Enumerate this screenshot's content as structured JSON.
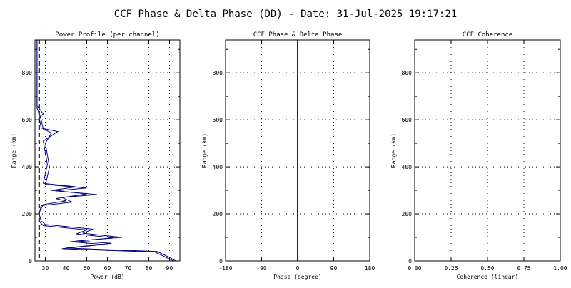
{
  "page": {
    "title": "CCF Phase & Delta Phase (DD) - Date: 31-Jul-2025 19:17:21"
  },
  "chart_data": [
    {
      "type": "line",
      "title": "Power Profile (per channel)",
      "xlabel": "Power (dB)",
      "ylabel": "Range (km)",
      "xlim": [
        25,
        95
      ],
      "ylim": [
        0,
        940
      ],
      "xticks": [
        "30",
        "40",
        "50",
        "60",
        "70",
        "80",
        "90"
      ],
      "xtick_values": [
        30,
        40,
        50,
        60,
        70,
        80,
        90
      ],
      "yticks": [
        "0",
        "200",
        "400",
        "600",
        "800"
      ],
      "ytick_values": [
        0,
        200,
        400,
        600,
        800
      ],
      "grid": true,
      "color": "#000080",
      "series": [
        {
          "values": [
            {
              "x": 93,
              "y": 0
            },
            {
              "x": 90,
              "y": 15
            },
            {
              "x": 84,
              "y": 40
            },
            {
              "x": 40,
              "y": 55
            },
            {
              "x": 62,
              "y": 75
            },
            {
              "x": 45,
              "y": 85
            },
            {
              "x": 67,
              "y": 100
            },
            {
              "x": 48,
              "y": 118
            },
            {
              "x": 53,
              "y": 135
            },
            {
              "x": 30,
              "y": 155
            },
            {
              "x": 28,
              "y": 170
            },
            {
              "x": 27,
              "y": 200
            },
            {
              "x": 28,
              "y": 235
            },
            {
              "x": 43,
              "y": 250
            },
            {
              "x": 38,
              "y": 270
            },
            {
              "x": 55,
              "y": 282
            },
            {
              "x": 35,
              "y": 298
            },
            {
              "x": 50,
              "y": 310
            },
            {
              "x": 30,
              "y": 325
            },
            {
              "x": 31,
              "y": 360
            },
            {
              "x": 32,
              "y": 400
            },
            {
              "x": 31,
              "y": 450
            },
            {
              "x": 30,
              "y": 500
            },
            {
              "x": 33,
              "y": 545
            },
            {
              "x": 29,
              "y": 560
            },
            {
              "x": 28,
              "y": 600
            },
            {
              "x": 26,
              "y": 650
            },
            {
              "x": 26,
              "y": 700
            },
            {
              "x": 26,
              "y": 800
            },
            {
              "x": 26,
              "y": 940
            }
          ]
        },
        {
          "values": [
            {
              "x": 92,
              "y": 0
            },
            {
              "x": 89,
              "y": 12
            },
            {
              "x": 83,
              "y": 38
            },
            {
              "x": 38,
              "y": 52
            },
            {
              "x": 58,
              "y": 70
            },
            {
              "x": 42,
              "y": 82
            },
            {
              "x": 63,
              "y": 98
            },
            {
              "x": 45,
              "y": 115
            },
            {
              "x": 50,
              "y": 132
            },
            {
              "x": 29,
              "y": 150
            },
            {
              "x": 27,
              "y": 168
            },
            {
              "x": 27,
              "y": 205
            },
            {
              "x": 29,
              "y": 240
            },
            {
              "x": 40,
              "y": 255
            },
            {
              "x": 35,
              "y": 265
            },
            {
              "x": 50,
              "y": 285
            },
            {
              "x": 33,
              "y": 300
            },
            {
              "x": 45,
              "y": 315
            },
            {
              "x": 29,
              "y": 330
            },
            {
              "x": 30,
              "y": 370
            },
            {
              "x": 31,
              "y": 410
            },
            {
              "x": 30,
              "y": 460
            },
            {
              "x": 29,
              "y": 510
            },
            {
              "x": 36,
              "y": 550
            },
            {
              "x": 28,
              "y": 565
            },
            {
              "x": 27,
              "y": 610
            },
            {
              "x": 29,
              "y": 625
            },
            {
              "x": 26,
              "y": 660
            },
            {
              "x": 26,
              "y": 720
            },
            {
              "x": 26,
              "y": 940
            }
          ]
        }
      ],
      "reference_line": {
        "x": 27
      }
    },
    {
      "type": "line",
      "title": "CCF Phase & Delta Phase",
      "xlabel": "Phase (degree)",
      "ylabel": "Range (km)",
      "xlim": [
        -180,
        180
      ],
      "ylim": [
        0,
        940
      ],
      "xticks": [
        "-180",
        "-90",
        "0",
        "90",
        "180"
      ],
      "xtick_values": [
        -180,
        -90,
        0,
        90,
        180
      ],
      "yticks": [
        "0",
        "200",
        "400",
        "600",
        "800"
      ],
      "ytick_values": [
        0,
        200,
        400,
        600,
        800
      ],
      "grid": true,
      "series": [
        {
          "color": "#800000",
          "values": [
            {
              "x": 0,
              "y": 0
            },
            {
              "x": 0,
              "y": 940
            }
          ]
        }
      ]
    },
    {
      "type": "scatter",
      "title": "CCF Coherence",
      "xlabel": "Coherence (linear)",
      "ylabel": "Range (km)",
      "xlim": [
        0,
        1
      ],
      "ylim": [
        0,
        940
      ],
      "xticks": [
        "0.00",
        "0.25",
        "0.50",
        "0.75",
        "1.00"
      ],
      "xtick_values": [
        0,
        0.25,
        0.5,
        0.75,
        1
      ],
      "yticks": [
        "0",
        "200",
        "400",
        "600",
        "800"
      ],
      "ytick_values": [
        0,
        200,
        400,
        600,
        800
      ],
      "grid": true,
      "series": []
    }
  ]
}
